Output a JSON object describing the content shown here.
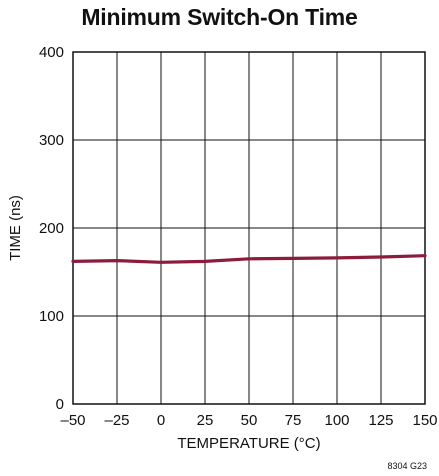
{
  "chart_data": {
    "type": "line",
    "title": "Minimum Switch-On Time",
    "xlabel": "TEMPERATURE (°C)",
    "ylabel": "TIME (ns)",
    "xlim": [
      -50,
      150
    ],
    "ylim": [
      0,
      400
    ],
    "x_ticks": [
      -50,
      -25,
      0,
      25,
      50,
      75,
      100,
      125,
      150
    ],
    "x_tick_labels": [
      "–50",
      "–25",
      "0",
      "25",
      "50",
      "75",
      "100",
      "125",
      "150"
    ],
    "y_ticks": [
      0,
      100,
      200,
      300,
      400
    ],
    "y_tick_labels": [
      "0",
      "100",
      "200",
      "300",
      "400"
    ],
    "grid": true,
    "series": [
      {
        "x": [
          -50,
          -25,
          0,
          25,
          50,
          75,
          100,
          125,
          150
        ],
        "y": [
          162,
          163,
          161,
          162,
          165,
          165.5,
          166,
          167,
          168.5
        ],
        "color": "#8c1c3c"
      }
    ],
    "figure_id": "8304 G23"
  }
}
